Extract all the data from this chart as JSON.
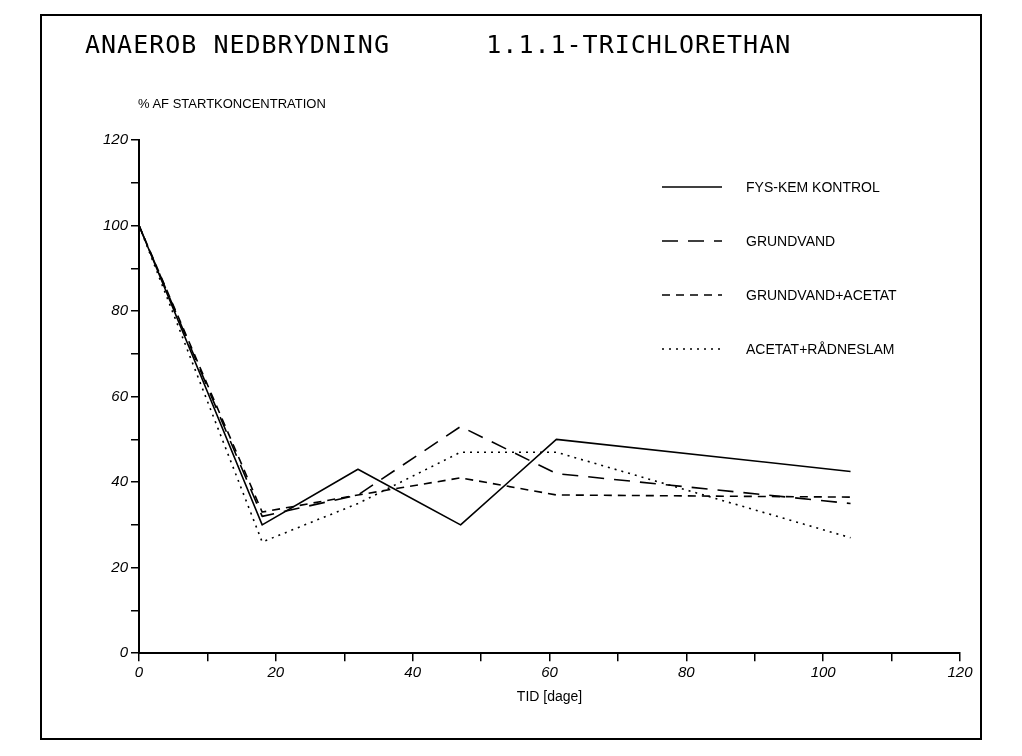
{
  "chart_data": {
    "type": "line",
    "title": "ANAEROB NEDBRYDNING      1.1.1-TRICHLORETHAN",
    "ylabel": "% AF STARTKONCENTRATION",
    "xlabel": "TID [dage]",
    "x": [
      0,
      18,
      32,
      47,
      61,
      104
    ],
    "series": [
      {
        "name": "FYS-KEM KONTROL",
        "color": "#000000",
        "line_style": "solid",
        "values": [
          100,
          30,
          43,
          30,
          50,
          42.5
        ]
      },
      {
        "name": "GRUNDVAND",
        "color": "#000000",
        "line_style": "dashed",
        "values": [
          100,
          32,
          37,
          53,
          42,
          35
        ]
      },
      {
        "name": "GRUNDVAND+ACETAT",
        "color": "#000000",
        "line_style": "dashed",
        "values": [
          100,
          33,
          37,
          41,
          37,
          36.5
        ]
      },
      {
        "name": "ACETAT+RÅDNESLAM",
        "color": "#000000",
        "line_style": "dotted",
        "values": [
          100,
          26,
          35,
          47,
          47,
          27
        ]
      }
    ],
    "xlim": [
      0,
      120
    ],
    "xticks": [
      0,
      {
        "value": 10,
        "label": null
      },
      20,
      {
        "value": 30,
        "label": null
      },
      40,
      {
        "value": 50,
        "label": null
      },
      60,
      {
        "value": 70,
        "label": null
      },
      80,
      {
        "value": 90,
        "label": null
      },
      100,
      {
        "value": 110,
        "label": null
      },
      120
    ],
    "ylim": [
      0,
      120
    ],
    "yticks": [
      0,
      {
        "value": 10,
        "label": null
      },
      20,
      {
        "value": 30,
        "label": null
      },
      40,
      {
        "value": 50,
        "label": null
      },
      60,
      {
        "value": 70,
        "label": null
      },
      80,
      {
        "value": 90,
        "label": null
      },
      100,
      {
        "value": 110,
        "label": null
      },
      120
    ],
    "grid": false,
    "legend": "top right",
    "marker": "none"
  }
}
